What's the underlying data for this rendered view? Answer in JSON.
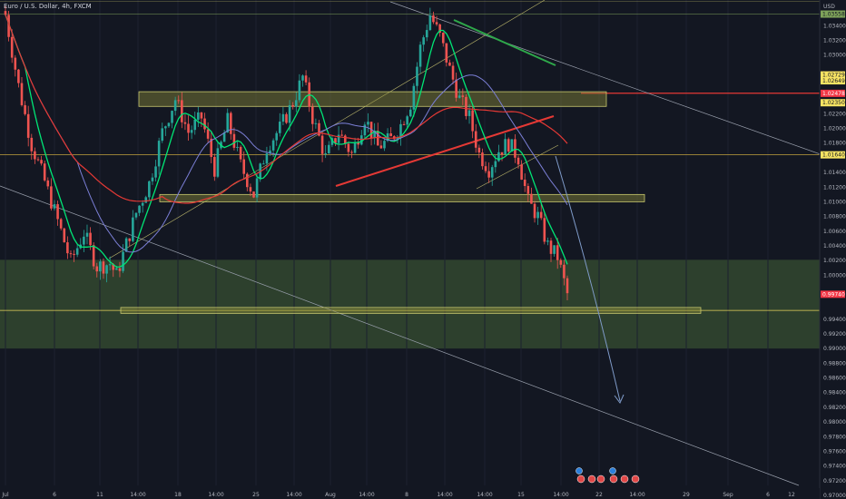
{
  "title": "Euro / U.S. Dollar, 4h, FXCM",
  "price_axis": {
    "currency": "USD",
    "ticks": [
      "1.03400",
      "1.03200",
      "1.03000",
      "1.02200",
      "1.02000",
      "1.01800",
      "1.01400",
      "1.01200",
      "1.01000",
      "1.00800",
      "1.00600",
      "1.00400",
      "1.00200",
      "1.00000",
      "0.99400",
      "0.99200",
      "0.99000",
      "0.98800",
      "0.98600",
      "0.98400",
      "0.98200",
      "0.98000",
      "0.97800",
      "0.97600",
      "0.97400",
      "0.97200",
      "0.97000"
    ],
    "tags": [
      {
        "label": "1.03558",
        "bg": "#7fa35a",
        "fg": "#131722"
      },
      {
        "label": "1.02729",
        "bg": "#f7e463",
        "fg": "#131722"
      },
      {
        "label": "1.02649",
        "bg": "#f7e463",
        "fg": "#131722"
      },
      {
        "label": "1.02478",
        "bg": "#f23645",
        "fg": "#ffffff"
      },
      {
        "label": "1.02350",
        "bg": "#f7e463",
        "fg": "#131722"
      },
      {
        "label": "1.01640",
        "bg": "#f7e463",
        "fg": "#131722"
      },
      {
        "label": "0.99740",
        "bg": "#f23645",
        "fg": "#ffffff"
      }
    ]
  },
  "time_axis": {
    "labels": [
      "Jul",
      "6",
      "11",
      "14:00",
      "18",
      "14:00",
      "25",
      "14:00",
      "Aug",
      "14:00",
      "8",
      "14:00",
      "14:00",
      "15",
      "14:00",
      "22",
      "14:00",
      "29",
      "Sep",
      "6",
      "12"
    ]
  },
  "colors": {
    "background": "#131722",
    "bull": "#26a69a",
    "bear": "#ef5350",
    "ma_fast": "#00e676",
    "ma_mid": "#7b7fd6",
    "ma_slow": "#e53935",
    "zone": "#33482f",
    "box_border": "#c8c86e",
    "trend_green": "#2ea84a",
    "trend_red": "#e53935",
    "projection": "#7f9bc9"
  },
  "chart_data": {
    "type": "candlestick",
    "symbol": "Euro / U.S. Dollar",
    "timeframe": "4h",
    "source": "FXCM",
    "last_price": 0.9974,
    "ylim": [
      0.9695,
      1.0375
    ],
    "close_path": [
      {
        "t": 0,
        "close": 1.0355
      },
      {
        "t": 4,
        "close": 1.0258
      },
      {
        "t": 8,
        "close": 1.0178
      },
      {
        "t": 12,
        "close": 1.0128
      },
      {
        "t": 16,
        "close": 1.0074
      },
      {
        "t": 20,
        "close": 1.0018
      },
      {
        "t": 24,
        "close": 1.0058
      },
      {
        "t": 28,
        "close": 1.0012
      },
      {
        "t": 32,
        "close": 1.0016
      },
      {
        "t": 34,
        "close": 1.0
      },
      {
        "t": 36,
        "close": 1.0028
      },
      {
        "t": 40,
        "close": 1.0085
      },
      {
        "t": 44,
        "close": 1.0125
      },
      {
        "t": 48,
        "close": 1.0195
      },
      {
        "t": 52,
        "close": 1.024
      },
      {
        "t": 56,
        "close": 1.0195
      },
      {
        "t": 60,
        "close": 1.0215
      },
      {
        "t": 64,
        "close": 1.0145
      },
      {
        "t": 68,
        "close": 1.021
      },
      {
        "t": 72,
        "close": 1.015
      },
      {
        "t": 76,
        "close": 1.011
      },
      {
        "t": 80,
        "close": 1.0175
      },
      {
        "t": 84,
        "close": 1.02
      },
      {
        "t": 88,
        "close": 1.0235
      },
      {
        "t": 91,
        "close": 1.027
      },
      {
        "t": 94,
        "close": 1.0215
      },
      {
        "t": 98,
        "close": 1.016
      },
      {
        "t": 102,
        "close": 1.0195
      },
      {
        "t": 106,
        "close": 1.0165
      },
      {
        "t": 110,
        "close": 1.0215
      },
      {
        "t": 114,
        "close": 1.0175
      },
      {
        "t": 118,
        "close": 1.0185
      },
      {
        "t": 121,
        "close": 1.0205
      },
      {
        "t": 124,
        "close": 1.0235
      },
      {
        "t": 127,
        "close": 1.031
      },
      {
        "t": 130,
        "close": 1.0355
      },
      {
        "t": 133,
        "close": 1.0325
      },
      {
        "t": 136,
        "close": 1.028
      },
      {
        "t": 139,
        "close": 1.024
      },
      {
        "t": 142,
        "close": 1.0215
      },
      {
        "t": 145,
        "close": 1.0165
      },
      {
        "t": 148,
        "close": 1.0145
      },
      {
        "t": 151,
        "close": 1.017
      },
      {
        "t": 154,
        "close": 1.018
      },
      {
        "t": 157,
        "close": 1.016
      },
      {
        "t": 160,
        "close": 1.01
      },
      {
        "t": 163,
        "close": 1.008
      },
      {
        "t": 166,
        "close": 1.004
      },
      {
        "t": 169,
        "close": 1.0025
      },
      {
        "t": 172,
        "close": 0.9974
      }
    ],
    "levels": [
      {
        "name": "yellow-box-1.0241",
        "low": 1.023,
        "high": 1.025
      },
      {
        "name": "yellow-box-1.0105",
        "low": 1.01,
        "high": 1.011
      },
      {
        "name": "yellow-box-0.9952",
        "low": 0.9948,
        "high": 0.9956
      },
      {
        "name": "support-zone",
        "low": 0.99,
        "high": 1.0021
      },
      {
        "name": "line-1.0164",
        "value": 1.0164
      },
      {
        "name": "line-0.9952",
        "value": 0.9952
      }
    ],
    "projection_target": 0.9815
  }
}
